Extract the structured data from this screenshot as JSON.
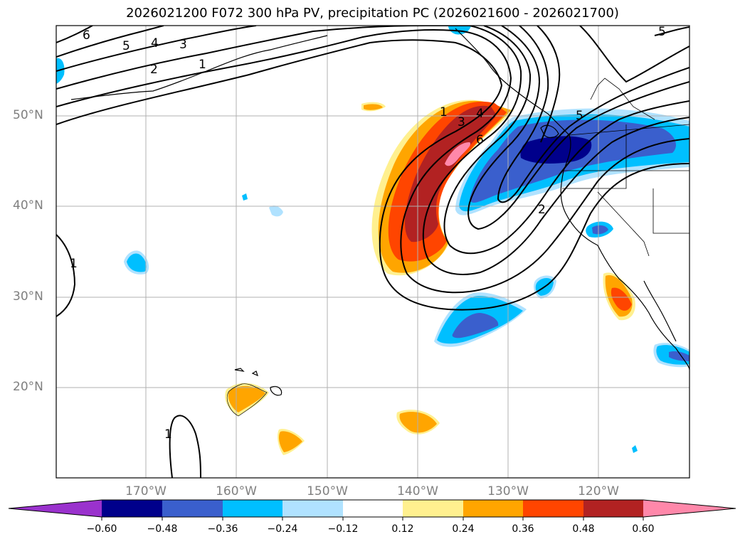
{
  "title": "2026021200 F072 300 hPa PV, precipitation PC (2026021600 - 2026021700)",
  "lat_labels": [
    "50°N",
    "40°N",
    "30°N",
    "20°N"
  ],
  "lon_labels": [
    "170°W",
    "160°W",
    "150°W",
    "140°W",
    "130°W",
    "120°W"
  ],
  "colorbar": {
    "ticks": [
      "−0.60",
      "−0.48",
      "−0.36",
      "−0.24",
      "−0.12",
      "0.12",
      "0.24",
      "0.36",
      "0.48",
      "0.60"
    ],
    "colors": [
      "#9a32cd",
      "#00008b",
      "#3a5fcd",
      "#00bfff",
      "#b0e2ff",
      "#ffffff",
      "#fff08f",
      "#ffa500",
      "#ff4500",
      "#b22222",
      "#ff88aa"
    ]
  },
  "contour_labels": [
    "6",
    "5",
    "4",
    "3",
    "2",
    "1",
    "1",
    "3",
    "4",
    "6",
    "2",
    "5",
    "5",
    "1",
    "1"
  ]
}
